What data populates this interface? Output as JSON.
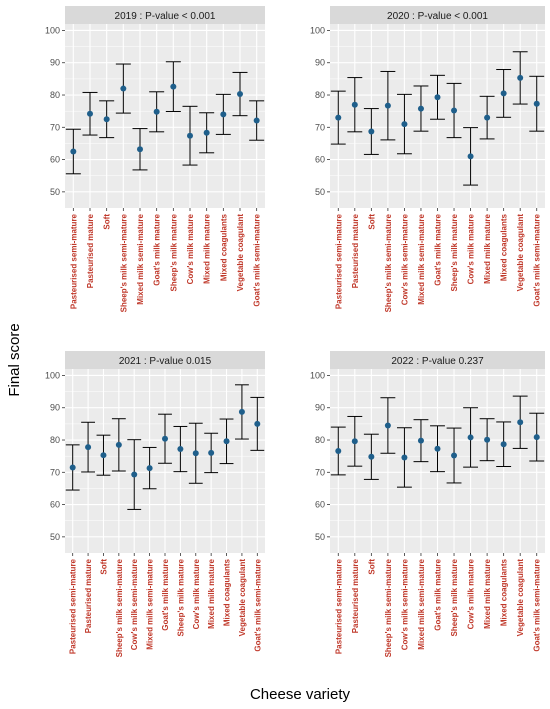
{
  "chart_data": {
    "type": "scatter",
    "xlabel": "Cheese variety",
    "ylabel": "Final score",
    "ylim": [
      45,
      102
    ],
    "yticks": [
      50,
      60,
      70,
      80,
      90,
      100
    ],
    "grid": true,
    "colors": {
      "point": "#1f5f8b",
      "errorbar": "#000000",
      "panel_bg": "#ebebeb",
      "grid": "#ffffff",
      "strip_bg": "#d9d9d9",
      "tick_label": "#c0392b"
    },
    "panels": [
      {
        "strip": "2019 : P-value  < 0.001",
        "categories": [
          "Pasteurised semi-mature",
          "Pasteurised mature",
          "Soft",
          "Sheep's milk semi-mature",
          "Mixed milk semi-mature",
          "Goat's milk mature",
          "Sheep's milk mature",
          "Cow's milk mature",
          "Mixed milk mature",
          "Mixed coagulants",
          "Vegetable coagulant",
          "Goat's milk semi-mature"
        ],
        "mean": [
          62.5,
          74.2,
          72.5,
          82.0,
          63.2,
          74.8,
          82.6,
          67.4,
          68.3,
          74.0,
          80.3,
          72.1
        ],
        "lower": [
          55.6,
          67.6,
          66.8,
          74.4,
          56.8,
          68.6,
          74.9,
          58.3,
          62.1,
          67.8,
          73.6,
          66.0
        ],
        "upper": [
          69.4,
          80.8,
          78.2,
          89.6,
          69.6,
          81.0,
          90.3,
          76.5,
          74.5,
          80.2,
          87.0,
          78.2
        ]
      },
      {
        "strip": "2020 : P-value  < 0.001",
        "categories": [
          "Pasteurised semi-mature",
          "Pasteurised mature",
          "Soft",
          "Sheep's milk semi-mature",
          "Cow's milk semi-mature",
          "Mixed milk semi-mature",
          "Goat's milk mature",
          "Sheep's milk mature",
          "Cow's milk mature",
          "Mixed milk mature",
          "Mixed coagulants",
          "Vegetable coagulant",
          "Goat's milk semi-mature"
        ],
        "mean": [
          73.0,
          77.0,
          68.7,
          76.7,
          71.0,
          75.8,
          79.3,
          75.2,
          61.0,
          73.0,
          80.5,
          85.3,
          77.3
        ],
        "lower": [
          64.8,
          68.6,
          61.6,
          66.1,
          61.8,
          68.8,
          72.5,
          66.8,
          52.1,
          66.4,
          73.1,
          77.2,
          68.8
        ],
        "upper": [
          81.2,
          85.4,
          75.8,
          87.3,
          80.2,
          82.8,
          86.1,
          83.6,
          69.9,
          79.6,
          87.9,
          93.4,
          85.8
        ]
      },
      {
        "strip": "2021 : P-value  0.015",
        "categories": [
          "Pasteurised semi-mature",
          "Pasteurised mature",
          "Soft",
          "Sheep's milk semi-mature",
          "Cow's milk semi-mature",
          "Mixed milk semi-mature",
          "Goat's milk mature",
          "Sheep's milk mature",
          "Cow's milk mature",
          "Mixed milk mature",
          "Mixed coagulants",
          "Vegetable coagulant",
          "Goat's milk semi-mature"
        ],
        "mean": [
          71.5,
          77.8,
          75.3,
          78.5,
          69.3,
          71.3,
          80.4,
          77.2,
          75.9,
          76.0,
          79.6,
          88.7,
          85.0
        ],
        "lower": [
          64.5,
          70.1,
          69.1,
          70.4,
          58.5,
          64.9,
          72.8,
          70.2,
          66.6,
          69.9,
          72.7,
          80.3,
          76.8
        ],
        "upper": [
          78.5,
          85.5,
          81.5,
          86.6,
          80.1,
          77.7,
          88.0,
          84.2,
          85.2,
          82.1,
          86.5,
          97.1,
          93.2
        ]
      },
      {
        "strip": "2022 : P-value  0.237",
        "categories": [
          "Pasteurised semi-mature",
          "Pasteurised mature",
          "Soft",
          "Sheep's milk semi-mature",
          "Cow's milk semi-mature",
          "Mixed milk semi-mature",
          "Goat's milk mature",
          "Sheep's milk mature",
          "Cow's milk mature",
          "Mixed milk mature",
          "Mixed coagulants",
          "Vegetable coagulant",
          "Goat's milk semi-mature"
        ],
        "mean": [
          76.6,
          79.6,
          74.8,
          84.5,
          74.6,
          79.8,
          77.3,
          75.2,
          80.8,
          80.1,
          78.7,
          85.5,
          80.9
        ],
        "lower": [
          69.2,
          71.9,
          67.8,
          75.9,
          65.4,
          73.3,
          70.2,
          66.7,
          71.6,
          73.6,
          71.8,
          77.4,
          73.5
        ],
        "upper": [
          84.0,
          87.3,
          81.8,
          93.1,
          83.8,
          86.3,
          84.4,
          83.7,
          90.0,
          86.6,
          85.6,
          93.6,
          88.3
        ]
      }
    ]
  }
}
